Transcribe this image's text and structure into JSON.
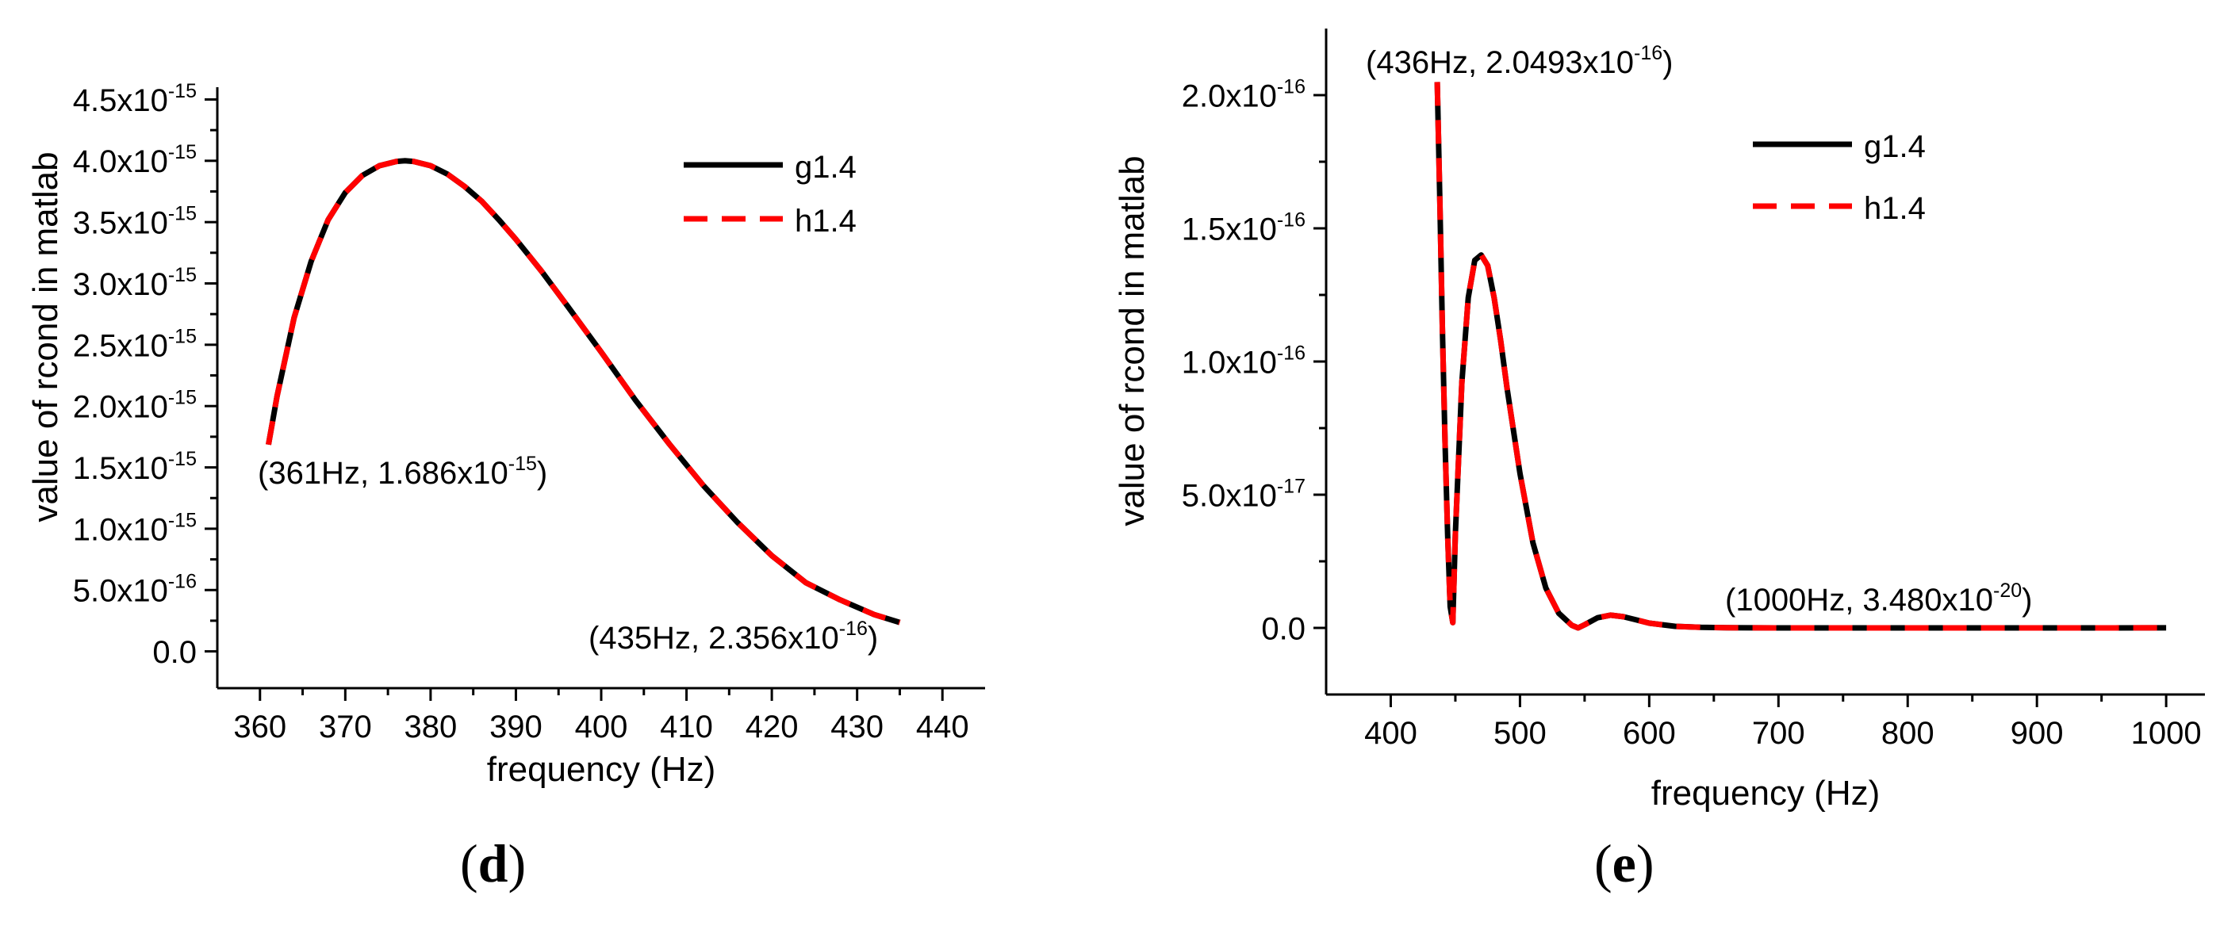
{
  "chart_data": [
    {
      "panel": "d",
      "type": "line",
      "title": "",
      "xlabel": "frequency (Hz)",
      "ylabel": "value of rcond in matlab",
      "xlim": [
        355,
        445
      ],
      "ylim": [
        -3e-16,
        4.6e-15
      ],
      "xticks": [
        360,
        370,
        380,
        390,
        400,
        410,
        420,
        430,
        440
      ],
      "xtick_labels": [
        "360",
        "370",
        "380",
        "390",
        "400",
        "410",
        "420",
        "430",
        "440"
      ],
      "yticks": [
        0,
        5e-16,
        1e-15,
        1.5e-15,
        2e-15,
        2.5e-15,
        3e-15,
        3.5e-15,
        4e-15,
        4.5e-15
      ],
      "ytick_labels": [
        {
          "base": "0.0",
          "exp": ""
        },
        {
          "base": "5.0x10",
          "exp": "-16"
        },
        {
          "base": "1.0x10",
          "exp": "-15"
        },
        {
          "base": "1.5x10",
          "exp": "-15"
        },
        {
          "base": "2.0x10",
          "exp": "-15"
        },
        {
          "base": "2.5x10",
          "exp": "-15"
        },
        {
          "base": "3.0x10",
          "exp": "-15"
        },
        {
          "base": "3.5x10",
          "exp": "-15"
        },
        {
          "base": "4.0x10",
          "exp": "-15"
        },
        {
          "base": "4.5x10",
          "exp": "-15"
        }
      ],
      "x": [
        361,
        362,
        364,
        366,
        368,
        370,
        372,
        374,
        376,
        377,
        378,
        380,
        382,
        384,
        386,
        388,
        390,
        393,
        396,
        400,
        404,
        408,
        412,
        416,
        420,
        424,
        428,
        432,
        435
      ],
      "series": [
        {
          "name": "g1.4",
          "color": "#000000",
          "dash": "solid",
          "values": [
            1.686e-15,
            2.08e-15,
            2.72e-15,
            3.18e-15,
            3.52e-15,
            3.74e-15,
            3.88e-15,
            3.96e-15,
            3.995e-15,
            4e-15,
            3.995e-15,
            3.96e-15,
            3.89e-15,
            3.79e-15,
            3.67e-15,
            3.52e-15,
            3.36e-15,
            3.1e-15,
            2.82e-15,
            2.44e-15,
            2.05e-15,
            1.69e-15,
            1.35e-15,
            1.05e-15,
            7.8e-16,
            5.6e-16,
            4.2e-16,
            3e-16,
            2.356e-16
          ]
        },
        {
          "name": "h1.4",
          "color": "#ff0000",
          "dash": "dashed",
          "values": [
            1.686e-15,
            2.08e-15,
            2.72e-15,
            3.18e-15,
            3.52e-15,
            3.74e-15,
            3.88e-15,
            3.96e-15,
            3.995e-15,
            4e-15,
            3.995e-15,
            3.96e-15,
            3.89e-15,
            3.79e-15,
            3.67e-15,
            3.52e-15,
            3.36e-15,
            3.1e-15,
            2.82e-15,
            2.44e-15,
            2.05e-15,
            1.69e-15,
            1.35e-15,
            1.05e-15,
            7.8e-16,
            5.6e-16,
            4.2e-16,
            3e-16,
            2.356e-16
          ]
        }
      ],
      "legend": {
        "position": "top-right",
        "entries": [
          "g1.4",
          "h1.4"
        ]
      },
      "annotations": [
        {
          "id": "start",
          "prefix": "(361Hz, 1.686x10",
          "exp": "-15",
          "suffix": ")"
        },
        {
          "id": "end",
          "prefix": "(435Hz, 2.356x10",
          "exp": "-16",
          "suffix": ")"
        }
      ]
    },
    {
      "panel": "e",
      "type": "line",
      "title": "",
      "xlabel": "frequency (Hz)",
      "ylabel": "value of rcond in matlab",
      "xlim": [
        350,
        1030
      ],
      "ylim": [
        -2.5e-17,
        2.25e-16
      ],
      "xticks": [
        400,
        500,
        600,
        700,
        800,
        900,
        1000
      ],
      "xtick_labels": [
        "400",
        "500",
        "600",
        "700",
        "800",
        "900",
        "1000"
      ],
      "yticks": [
        0,
        5e-17,
        1e-16,
        1.5e-16,
        2e-16
      ],
      "ytick_labels": [
        {
          "base": "0.0",
          "exp": ""
        },
        {
          "base": "5.0x10",
          "exp": "-17"
        },
        {
          "base": "1.0x10",
          "exp": "-16"
        },
        {
          "base": "1.5x10",
          "exp": "-16"
        },
        {
          "base": "2.0x10",
          "exp": "-16"
        }
      ],
      "x": [
        436,
        438,
        440,
        442,
        444,
        446,
        448,
        450,
        455,
        460,
        465,
        470,
        475,
        480,
        485,
        490,
        500,
        510,
        520,
        530,
        540,
        545,
        550,
        560,
        570,
        580,
        590,
        600,
        620,
        640,
        660,
        700,
        800,
        900,
        1000
      ],
      "series": [
        {
          "name": "g1.4",
          "color": "#000000",
          "dash": "solid",
          "values": [
            2.0493e-16,
            1.6e-16,
            1.12e-16,
            7e-17,
            3.5e-17,
            8e-18,
            2e-18,
            3.5e-17,
            9.2e-17,
            1.24e-16,
            1.38e-16,
            1.4e-16,
            1.36e-16,
            1.24e-16,
            1.08e-16,
            9e-17,
            5.8e-17,
            3.2e-17,
            1.5e-17,
            5.5e-18,
            1e-18,
            0.0,
            1.2e-18,
            3.8e-18,
            4.8e-18,
            4.2e-18,
            3e-18,
            1.8e-18,
            6e-19,
            2e-19,
            5e-20,
            1e-20,
            0.0,
            0.0,
            3.48e-20
          ]
        },
        {
          "name": "h1.4",
          "color": "#ff0000",
          "dash": "dashed",
          "values": [
            2.0493e-16,
            1.6e-16,
            1.12e-16,
            7e-17,
            3.5e-17,
            8e-18,
            2e-18,
            3.5e-17,
            9.2e-17,
            1.24e-16,
            1.38e-16,
            1.4e-16,
            1.36e-16,
            1.24e-16,
            1.08e-16,
            9e-17,
            5.8e-17,
            3.2e-17,
            1.5e-17,
            5.5e-18,
            1e-18,
            0.0,
            1.2e-18,
            3.8e-18,
            4.8e-18,
            4.2e-18,
            3e-18,
            1.8e-18,
            6e-19,
            2e-19,
            5e-20,
            1e-20,
            0.0,
            0.0,
            3.48e-20
          ]
        }
      ],
      "legend": {
        "position": "top-right",
        "entries": [
          "g1.4",
          "h1.4"
        ]
      },
      "annotations": [
        {
          "id": "peak",
          "prefix": "(436Hz, 2.0493x10",
          "exp": "-16",
          "suffix": ")"
        },
        {
          "id": "end",
          "prefix": "(1000Hz, 3.480x10",
          "exp": "-20",
          "suffix": ")"
        }
      ]
    }
  ],
  "panel_labels": {
    "d": {
      "open": "(",
      "letter": "d",
      "close": ")"
    },
    "e": {
      "open": "(",
      "letter": "e",
      "close": ")"
    }
  }
}
